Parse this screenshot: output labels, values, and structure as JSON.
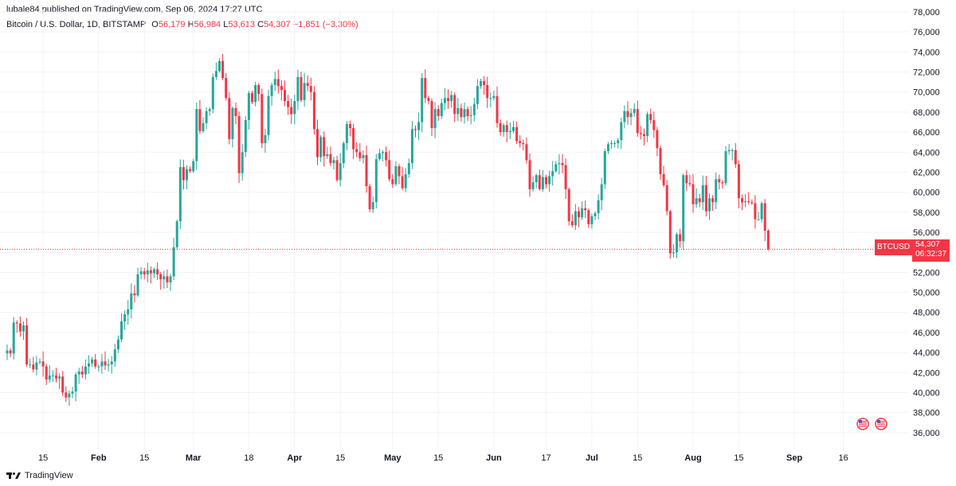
{
  "header": {
    "published": "lubale84 published on TradingView.com, Sep 06, 2024 17:27 UTC",
    "pair": "Bitcoin / U.S. Dollar, 1D, BITSTAMP",
    "o_label": "O",
    "o_value": "56,179",
    "h_label": "H",
    "h_value": "56,984",
    "l_label": "L",
    "l_value": "53,613",
    "c_label": "C",
    "c_value": "54,307",
    "change": "−1,851 (−3.30%)"
  },
  "price_tag": {
    "symbol": "BTCUSD",
    "price": "54,307",
    "countdown": "06:32:37"
  },
  "footer": {
    "brand": "TradingView"
  },
  "colors": {
    "up": "#26a69a",
    "down": "#f23645",
    "grid": "#f0f3fa",
    "text": "#131722"
  },
  "chart_data": {
    "type": "candlestick",
    "y_axis": {
      "min": 34000,
      "max": 78000,
      "ticks": [
        36000,
        38000,
        40000,
        42000,
        44000,
        46000,
        48000,
        50000,
        52000,
        54000,
        56000,
        58000,
        60000,
        62000,
        64000,
        66000,
        68000,
        70000,
        72000,
        74000,
        76000,
        78000
      ]
    },
    "x_labels": [
      {
        "text": "15",
        "date": "2024-01-15"
      },
      {
        "text": "Feb",
        "date": "2024-02-01",
        "bold": true
      },
      {
        "text": "15",
        "date": "2024-02-15"
      },
      {
        "text": "Mar",
        "date": "2024-03-01",
        "bold": true
      },
      {
        "text": "18",
        "date": "2024-03-18"
      },
      {
        "text": "Apr",
        "date": "2024-04-01",
        "bold": true
      },
      {
        "text": "15",
        "date": "2024-04-15"
      },
      {
        "text": "May",
        "date": "2024-05-01",
        "bold": true
      },
      {
        "text": "15",
        "date": "2024-05-15"
      },
      {
        "text": "Jun",
        "date": "2024-06-01",
        "bold": true
      },
      {
        "text": "17",
        "date": "2024-06-17"
      },
      {
        "text": "Jul",
        "date": "2024-07-01",
        "bold": true
      },
      {
        "text": "15",
        "date": "2024-07-15"
      },
      {
        "text": "Aug",
        "date": "2024-08-01",
        "bold": true
      },
      {
        "text": "15",
        "date": "2024-08-15"
      },
      {
        "text": "Sep",
        "date": "2024-09-01",
        "bold": true
      },
      {
        "text": "16",
        "date": "2024-09-16"
      }
    ],
    "first_date": "2024-01-04",
    "last_price": 54307,
    "closes": [
      44200,
      43900,
      47000,
      46900,
      46100,
      46700,
      42800,
      42800,
      42300,
      43000,
      43100,
      42600,
      41300,
      41700,
      41700,
      41400,
      41600,
      40000,
      39500,
      39900,
      40100,
      41800,
      42100,
      41800,
      42600,
      42900,
      43300,
      42600,
      42600,
      43100,
      42700,
      42800,
      43100,
      44300,
      45300,
      47100,
      47800,
      48300,
      49900,
      49700,
      51800,
      52100,
      51800,
      52200,
      51900,
      52300,
      51800,
      51300,
      51600,
      51000,
      51600,
      54500,
      57100,
      62500,
      61200,
      62300,
      62100,
      63100,
      68300,
      66100,
      66900,
      68100,
      68300,
      71500,
      72100,
      73100,
      71400,
      69400,
      65300,
      68400,
      67600,
      61900,
      64000,
      67200,
      69900,
      69000,
      70700,
      69800,
      64900,
      65700,
      69600,
      70700,
      71300,
      70600,
      70200,
      69100,
      68500,
      67800,
      69100,
      71500,
      69200,
      70900,
      70600,
      70000,
      66300,
      63500,
      65500,
      63600,
      63800,
      62900,
      63200,
      61200,
      62900,
      64900,
      66800,
      66400,
      64300,
      64000,
      63400,
      63700,
      60600,
      58300,
      59000,
      63300,
      63900,
      64000,
      63200,
      61300,
      60800,
      62600,
      61600,
      60400,
      61800,
      62900,
      66300,
      66200,
      67000,
      71400,
      69400,
      69100,
      66400,
      68300,
      67600,
      68900,
      69400,
      69100,
      69700,
      67800,
      68400,
      67500,
      68300,
      67600,
      67700,
      68800,
      70600,
      71100,
      70700,
      69400,
      69400,
      69600,
      66900,
      66000,
      66700,
      66000,
      66100,
      66500,
      65100,
      64900,
      64800,
      63200,
      60300,
      61000,
      61700,
      60300,
      61500,
      60800,
      61600,
      62100,
      62800,
      62900,
      62700,
      60300,
      57100,
      56700,
      58100,
      57500,
      58400,
      58200,
      56800,
      57600,
      57900,
      59200,
      60800,
      64100,
      64800,
      64900,
      64900,
      65200,
      67000,
      68100,
      67500,
      67900,
      68300,
      65900,
      65800,
      65600,
      67800,
      67200,
      66200,
      64400,
      61800,
      60700,
      58100,
      53900,
      54000,
      55800,
      55100,
      61700,
      60900,
      60800,
      58800,
      59400,
      59000,
      60700,
      58100,
      59400,
      59000,
      61300,
      61000,
      60900,
      64100,
      64200,
      64200,
      62800,
      59400,
      59000,
      59100,
      59000,
      58900,
      57300,
      57300,
      58900,
      56158,
      54307
    ]
  }
}
